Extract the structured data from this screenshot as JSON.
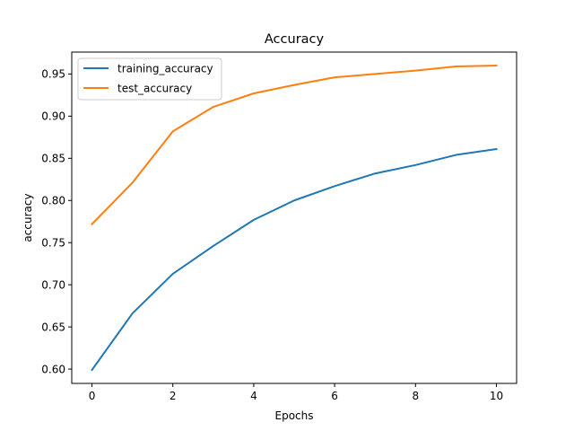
{
  "chart_data": {
    "type": "line",
    "title": "Accuracy",
    "xlabel": "Epochs",
    "ylabel": "accuracy",
    "x": [
      0,
      1,
      2,
      3,
      4,
      5,
      6,
      7,
      8,
      9,
      10
    ],
    "xlim": [
      -0.5,
      10.5
    ],
    "ylim": [
      0.583,
      0.976
    ],
    "x_ticks": [
      0,
      2,
      4,
      6,
      8,
      10
    ],
    "y_ticks": [
      0.6,
      0.65,
      0.7,
      0.75,
      0.8,
      0.85,
      0.9,
      0.95
    ],
    "y_tick_labels": [
      "0.60",
      "0.65",
      "0.70",
      "0.75",
      "0.80",
      "0.85",
      "0.90",
      "0.95"
    ],
    "grid": false,
    "legend_position": "top-left",
    "series": [
      {
        "name": "training_accuracy",
        "color": "#1f77b4",
        "values": [
          0.599,
          0.666,
          0.713,
          0.746,
          0.777,
          0.8,
          0.817,
          0.832,
          0.842,
          0.854,
          0.861
        ]
      },
      {
        "name": "test_accuracy",
        "color": "#ff7f0e",
        "values": [
          0.772,
          0.821,
          0.882,
          0.911,
          0.927,
          0.937,
          0.946,
          0.95,
          0.954,
          0.959,
          0.96
        ]
      }
    ]
  }
}
